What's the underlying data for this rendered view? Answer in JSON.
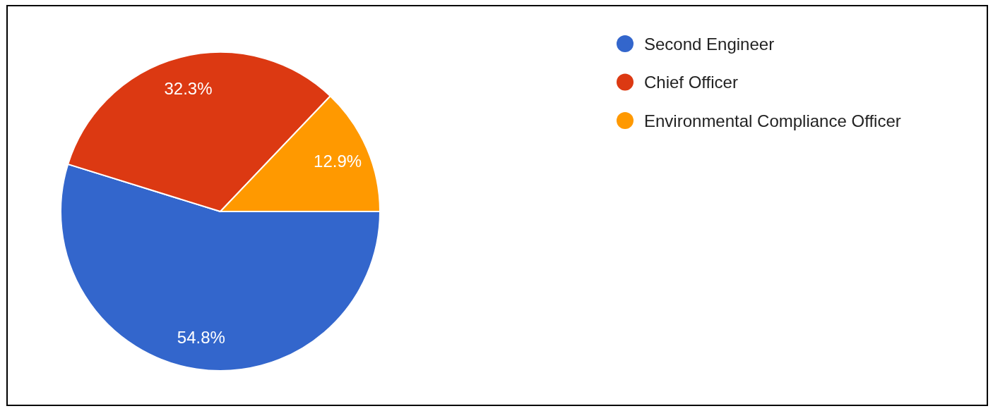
{
  "chart_data": {
    "type": "pie",
    "categories": [
      "Second Engineer",
      "Chief Officer",
      "Environmental Compliance Officer"
    ],
    "values": [
      54.8,
      32.3,
      12.9
    ],
    "colors": [
      "#3366cc",
      "#dc3912",
      "#ff9900"
    ],
    "value_labels": [
      "54.8%",
      "32.3%",
      "12.9%"
    ],
    "legend": "top right"
  }
}
